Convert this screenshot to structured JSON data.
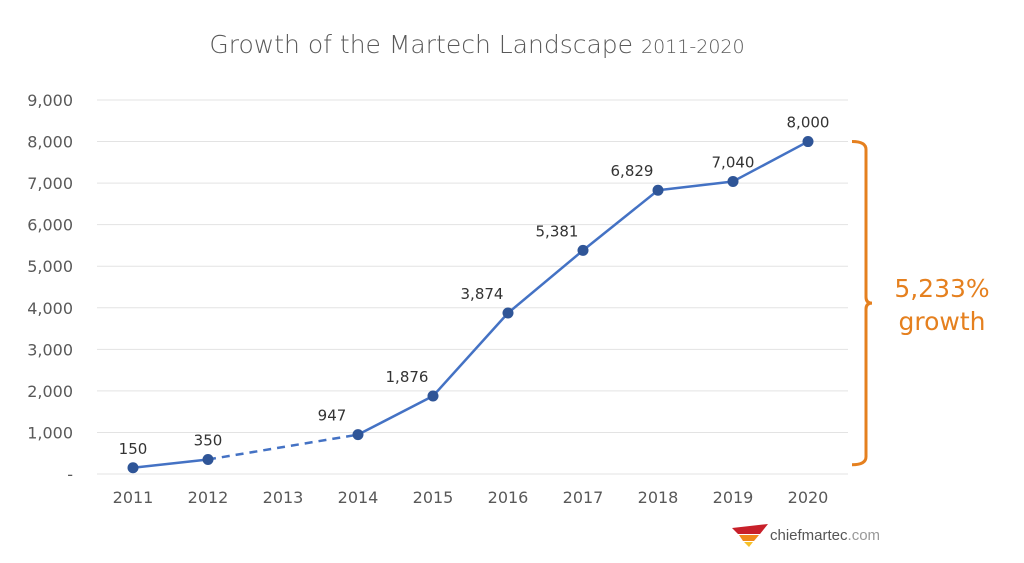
{
  "chart_data": {
    "type": "line",
    "title": "Growth of the Martech Landscape",
    "subtitle": "2011-2020",
    "categories": [
      "2011",
      "2012",
      "2013",
      "2014",
      "2015",
      "2016",
      "2017",
      "2018",
      "2019",
      "2020"
    ],
    "values": [
      150,
      350,
      null,
      947,
      1876,
      3874,
      5381,
      6829,
      7040,
      8000
    ],
    "data_labels": [
      "150",
      "350",
      "",
      "947",
      "1,876",
      "3,874",
      "5,381",
      "6,829",
      "7,040",
      "8,000"
    ],
    "interpolated_segment": {
      "from": "2012",
      "to": "2014",
      "style": "dashed"
    },
    "ylim": [
      0,
      9000
    ],
    "yticks": [
      0,
      1000,
      2000,
      3000,
      4000,
      5000,
      6000,
      7000,
      8000,
      9000
    ],
    "ytick_labels": [
      "-",
      "1,000",
      "2,000",
      "3,000",
      "4,000",
      "5,000",
      "6,000",
      "7,000",
      "8,000",
      "9,000"
    ],
    "xlabel": "",
    "ylabel": "",
    "grid": "horizontal",
    "line_color": "#4472c4",
    "marker_color": "#2f5597",
    "annotation": {
      "line1": "5,233%",
      "line2": "growth",
      "color": "#e5801f",
      "span": [
        150,
        8000
      ]
    }
  },
  "logo": {
    "text": "chiefmartec",
    "suffix": ".com"
  }
}
